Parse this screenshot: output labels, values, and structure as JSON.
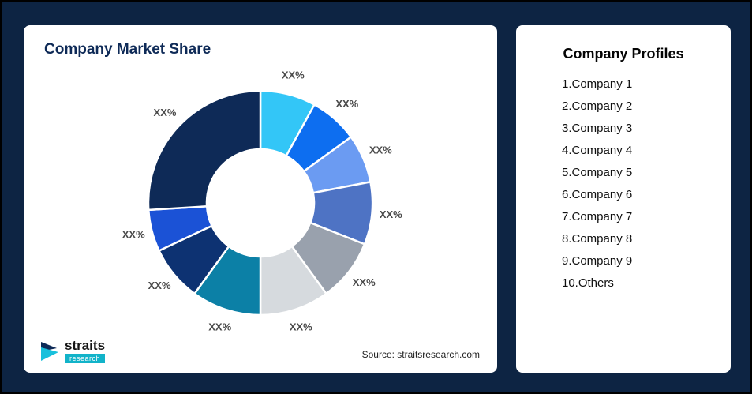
{
  "market_share_card": {
    "title": "Company Market Share",
    "source": "Source: straitsresearch.com",
    "logo": {
      "name": "straits",
      "sub": "research"
    }
  },
  "profiles_card": {
    "title": "Company Profiles",
    "items": [
      "1.Company 1",
      "2.Company 2",
      "3.Company 3",
      "4.Company 4",
      "5.Company 5",
      "6.Company 6",
      "7.Company 7",
      "8.Company 8",
      "9.Company 9",
      "10.Others"
    ]
  },
  "chart_data": {
    "type": "pie",
    "subtype": "donut",
    "title": "Company Market Share",
    "legend": false,
    "start_angle_deg": 0,
    "direction": "clockwise",
    "note": "All slice labels show placeholder text XX%; values are estimated from arc spans",
    "segments": [
      {
        "name": "segment-1",
        "display": "XX%",
        "value": 8,
        "color": "#33c6f7"
      },
      {
        "name": "segment-2",
        "display": "XX%",
        "value": 7,
        "color": "#0d6ef0"
      },
      {
        "name": "segment-3",
        "display": "XX%",
        "value": 7,
        "color": "#6b9bf2"
      },
      {
        "name": "segment-4",
        "display": "XX%",
        "value": 9,
        "color": "#4e73c4"
      },
      {
        "name": "segment-5",
        "display": "XX%",
        "value": 9,
        "color": "#99a1ad"
      },
      {
        "name": "segment-6",
        "display": "XX%",
        "value": 10,
        "color": "#d6dade"
      },
      {
        "name": "segment-7",
        "display": "XX%",
        "value": 10,
        "color": "#0c80a6"
      },
      {
        "name": "segment-8",
        "display": "XX%",
        "value": 8,
        "color": "#0d3272"
      },
      {
        "name": "segment-9",
        "display": "XX%",
        "value": 6,
        "color": "#1b52d6"
      },
      {
        "name": "segment-10",
        "display": "XX%",
        "value": 26,
        "color": "#0e2a57"
      }
    ]
  }
}
